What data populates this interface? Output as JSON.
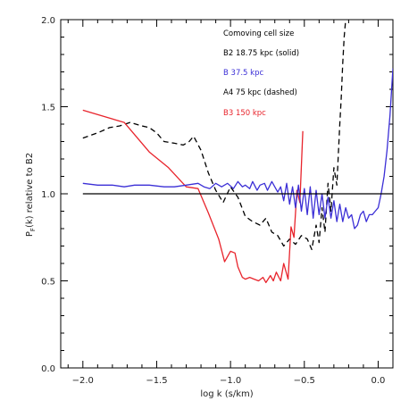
{
  "chart_data": {
    "type": "line",
    "xlabel": "log k (s/km)",
    "ylabel_main": "P",
    "ylabel_sub": "F",
    "ylabel_rest": "(k) relative to B2",
    "xlim": [
      -2.15,
      0.1
    ],
    "ylim": [
      0.0,
      2.0
    ],
    "x_ticks": [
      -2.0,
      -1.5,
      -1.0,
      -0.5,
      0.0
    ],
    "x_tick_labels": [
      "−2.0",
      "−1.5",
      "−1.0",
      "−0.5",
      "0.0"
    ],
    "y_ticks": [
      0.0,
      0.5,
      1.0,
      1.5,
      2.0
    ],
    "y_tick_labels": [
      "0.0",
      "0.5",
      "1.0",
      "1.5",
      "2.0"
    ],
    "legend_title": "Comoving cell size",
    "reference_line": {
      "y": 1.0,
      "color": "#000000"
    },
    "series": [
      {
        "name": "B2 18.75 kpc (solid)",
        "color": "#000000",
        "dash": "solid",
        "x": [
          -2.0,
          0.1
        ],
        "y": [
          1.0,
          1.0
        ]
      },
      {
        "name": "B  37.5 kpc",
        "color": "#3b2fd6",
        "dash": "solid",
        "x": [
          -2.0,
          -1.9,
          -1.8,
          -1.72,
          -1.65,
          -1.55,
          -1.45,
          -1.38,
          -1.3,
          -1.22,
          -1.18,
          -1.14,
          -1.1,
          -1.06,
          -1.02,
          -0.98,
          -0.95,
          -0.92,
          -0.9,
          -0.87,
          -0.85,
          -0.82,
          -0.8,
          -0.77,
          -0.75,
          -0.72,
          -0.7,
          -0.68,
          -0.66,
          -0.64,
          -0.62,
          -0.6,
          -0.58,
          -0.56,
          -0.54,
          -0.52,
          -0.5,
          -0.48,
          -0.46,
          -0.44,
          -0.42,
          -0.4,
          -0.38,
          -0.36,
          -0.34,
          -0.32,
          -0.3,
          -0.28,
          -0.26,
          -0.24,
          -0.22,
          -0.2,
          -0.18,
          -0.16,
          -0.14,
          -0.12,
          -0.1,
          -0.08,
          -0.06,
          -0.04,
          -0.02,
          0.0,
          0.02,
          0.04,
          0.06,
          0.08,
          0.1
        ],
        "y": [
          1.06,
          1.05,
          1.05,
          1.04,
          1.05,
          1.05,
          1.04,
          1.04,
          1.05,
          1.06,
          1.04,
          1.03,
          1.06,
          1.04,
          1.06,
          1.03,
          1.07,
          1.04,
          1.05,
          1.03,
          1.07,
          1.02,
          1.05,
          1.06,
          1.02,
          1.07,
          1.04,
          1.01,
          1.04,
          0.96,
          1.06,
          0.94,
          1.04,
          0.92,
          1.05,
          0.9,
          1.03,
          0.88,
          1.04,
          0.86,
          1.02,
          0.88,
          1.0,
          0.86,
          0.98,
          0.86,
          0.96,
          0.84,
          0.94,
          0.84,
          0.92,
          0.86,
          0.88,
          0.8,
          0.82,
          0.88,
          0.9,
          0.84,
          0.88,
          0.88,
          0.9,
          0.92,
          1.0,
          1.1,
          1.25,
          1.45,
          1.72
        ]
      },
      {
        "name": "A4 75 kpc (dashed)",
        "color": "#000000",
        "dash": "dashed",
        "x": [
          -2.0,
          -1.9,
          -1.82,
          -1.75,
          -1.68,
          -1.6,
          -1.55,
          -1.5,
          -1.45,
          -1.38,
          -1.32,
          -1.28,
          -1.25,
          -1.2,
          -1.15,
          -1.1,
          -1.05,
          -1.0,
          -0.95,
          -0.9,
          -0.85,
          -0.8,
          -0.76,
          -0.72,
          -0.68,
          -0.64,
          -0.6,
          -0.56,
          -0.52,
          -0.48,
          -0.45,
          -0.42,
          -0.4,
          -0.38,
          -0.36,
          -0.34,
          -0.32,
          -0.3,
          -0.28,
          -0.26,
          -0.25,
          -0.24,
          -0.23,
          -0.22
        ],
        "y": [
          1.32,
          1.35,
          1.38,
          1.39,
          1.41,
          1.39,
          1.38,
          1.35,
          1.3,
          1.29,
          1.28,
          1.3,
          1.33,
          1.25,
          1.12,
          1.02,
          0.95,
          1.04,
          0.98,
          0.87,
          0.84,
          0.82,
          0.86,
          0.78,
          0.76,
          0.7,
          0.74,
          0.71,
          0.76,
          0.74,
          0.68,
          0.82,
          0.72,
          0.92,
          0.78,
          1.06,
          0.9,
          1.15,
          1.05,
          1.4,
          1.55,
          1.75,
          1.9,
          2.0
        ]
      },
      {
        "name": "B3 150 kpc",
        "color": "#e8242c",
        "dash": "solid",
        "x": [
          -2.0,
          -1.72,
          -1.55,
          -1.42,
          -1.3,
          -1.22,
          -1.15,
          -1.08,
          -1.04,
          -1.0,
          -0.97,
          -0.95,
          -0.92,
          -0.9,
          -0.87,
          -0.84,
          -0.81,
          -0.78,
          -0.76,
          -0.73,
          -0.71,
          -0.69,
          -0.66,
          -0.64,
          -0.61,
          -0.59,
          -0.57,
          -0.55,
          -0.53,
          -0.51
        ],
        "y": [
          1.48,
          1.41,
          1.24,
          1.15,
          1.04,
          1.03,
          0.89,
          0.74,
          0.61,
          0.67,
          0.66,
          0.58,
          0.52,
          0.51,
          0.52,
          0.51,
          0.5,
          0.52,
          0.49,
          0.53,
          0.5,
          0.55,
          0.5,
          0.6,
          0.51,
          0.81,
          0.75,
          1.02,
          0.95,
          1.36
        ]
      }
    ]
  }
}
